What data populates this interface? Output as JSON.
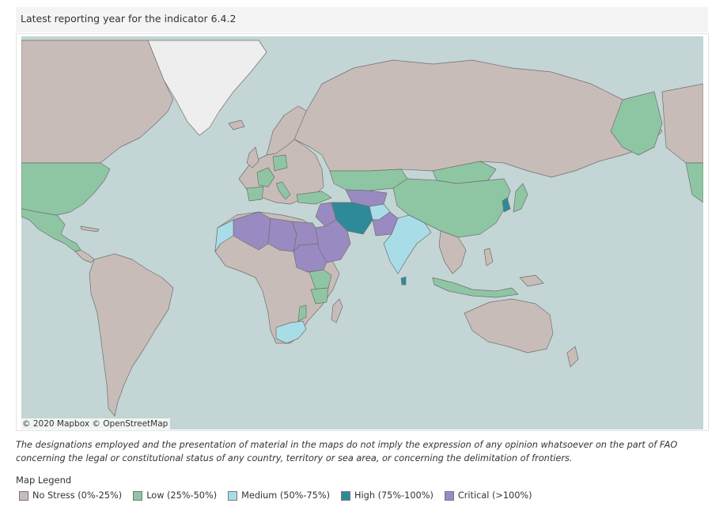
{
  "title": "Latest reporting year for the indicator 6.4.2",
  "attribution": "© 2020 Mapbox  © OpenStreetMap",
  "disclaimer": "The designations employed and the presentation of material in the maps do not imply the expression of any opinion whatsoever on the part of FAO concerning the legal or constitutional status of any country, territory or sea area, or concerning the delimitation of frontiers.",
  "legend": {
    "title": "Map Legend",
    "items": [
      {
        "label": "No Stress (0%-25%)",
        "color": "#c8bcb9"
      },
      {
        "label": "Low (25%-50%)",
        "color": "#8ec6a4"
      },
      {
        "label": "Medium (50%-75%)",
        "color": "#a8dde8"
      },
      {
        "label": "High (75%-100%)",
        "color": "#2e8a9a"
      },
      {
        "label": "Critical (>100%)",
        "color": "#9a8ac2"
      }
    ]
  },
  "colors": {
    "ocean": "#c3d5d4",
    "ice": "#eeeeee",
    "border": "#6f6f6f"
  }
}
